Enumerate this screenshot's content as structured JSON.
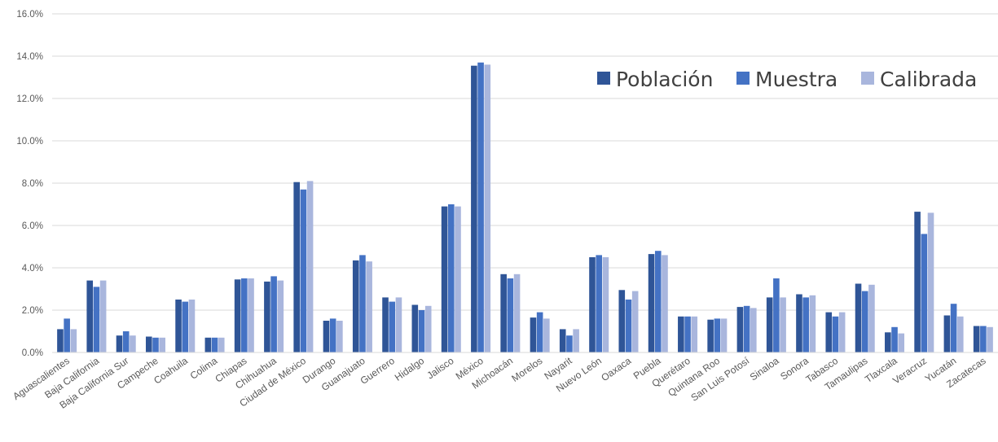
{
  "chart_data": {
    "type": "bar",
    "title": "",
    "xlabel": "",
    "ylabel": "",
    "ylim": [
      0,
      16
    ],
    "y_ticks": [
      0,
      2,
      4,
      6,
      8,
      10,
      12,
      14,
      16
    ],
    "y_tick_labels": [
      "0.0%",
      "2.0%",
      "4.0%",
      "6.0%",
      "8.0%",
      "10.0%",
      "12.0%",
      "14.0%",
      "16.0%"
    ],
    "grid": "horizontal",
    "legend_position": "top-right",
    "categories": [
      "Aguascalientes",
      "Baja California",
      "Baja California Sur",
      "Campeche",
      "Coahuila",
      "Colima",
      "Chiapas",
      "Chihuahua",
      "Ciudad de México",
      "Durango",
      "Guanajuato",
      "Guerrero",
      "Hidalgo",
      "Jalisco",
      "México",
      "Michoacán",
      "Morelos",
      "Nayarit",
      "Nuevo León",
      "Oaxaca",
      "Puebla",
      "Querétaro",
      "Quintana Roo",
      "San Luis Potosí",
      "Sinaloa",
      "Sonora",
      "Tabasco",
      "Tamaulipas",
      "Tlaxcala",
      "Veracruz",
      "Yucatán",
      "Zacatecas"
    ],
    "series": [
      {
        "name": "Población",
        "color": "#2f5597",
        "values": [
          1.1,
          3.4,
          0.8,
          0.75,
          2.5,
          0.7,
          3.45,
          3.35,
          8.05,
          1.5,
          4.35,
          2.6,
          2.25,
          6.9,
          13.55,
          3.7,
          1.65,
          1.1,
          4.5,
          2.95,
          4.65,
          1.7,
          1.55,
          2.15,
          2.6,
          2.75,
          1.9,
          3.25,
          0.95,
          6.65,
          1.75,
          1.25
        ]
      },
      {
        "name": "Muestra",
        "color": "#4472c4",
        "values": [
          1.6,
          3.1,
          1.0,
          0.7,
          2.4,
          0.7,
          3.5,
          3.6,
          7.7,
          1.6,
          4.6,
          2.4,
          2.0,
          7.0,
          13.7,
          3.5,
          1.9,
          0.8,
          4.6,
          2.5,
          4.8,
          1.7,
          1.6,
          2.2,
          3.5,
          2.6,
          1.7,
          2.9,
          1.2,
          5.6,
          2.3,
          1.25
        ]
      },
      {
        "name": "Calibrada",
        "color": "#a9b6dd",
        "values": [
          1.1,
          3.4,
          0.8,
          0.7,
          2.5,
          0.7,
          3.5,
          3.4,
          8.1,
          1.5,
          4.3,
          2.6,
          2.2,
          6.9,
          13.6,
          3.7,
          1.6,
          1.1,
          4.5,
          2.9,
          4.6,
          1.7,
          1.6,
          2.1,
          2.6,
          2.7,
          1.9,
          3.2,
          0.9,
          6.6,
          1.7,
          1.2
        ]
      }
    ]
  }
}
